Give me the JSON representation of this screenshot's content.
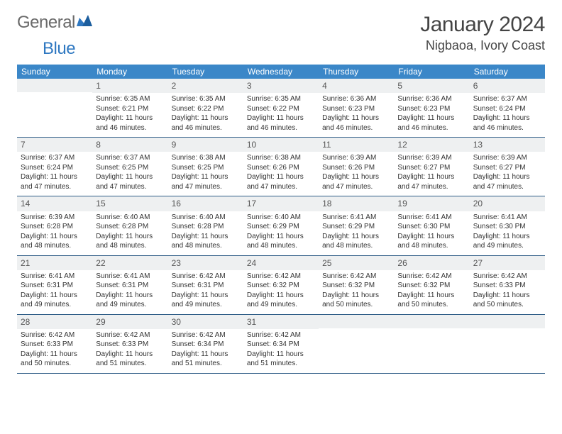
{
  "logo": {
    "word1": "General",
    "word2": "Blue"
  },
  "header": {
    "title": "January 2024",
    "location": "Nigbaoa, Ivory Coast"
  },
  "colors": {
    "dow_bg": "#3b87c8",
    "dow_text": "#ffffff",
    "daynum_bg": "#eef0f1",
    "week_border": "#2f5d87",
    "logo_gray": "#6a6a6a",
    "logo_blue": "#2f78c1"
  },
  "days_of_week": [
    "Sunday",
    "Monday",
    "Tuesday",
    "Wednesday",
    "Thursday",
    "Friday",
    "Saturday"
  ],
  "weeks": [
    [
      {
        "day": "",
        "sunrise": "",
        "sunset": "",
        "daylight": ""
      },
      {
        "day": "1",
        "sunrise": "Sunrise: 6:35 AM",
        "sunset": "Sunset: 6:21 PM",
        "daylight": "Daylight: 11 hours and 46 minutes."
      },
      {
        "day": "2",
        "sunrise": "Sunrise: 6:35 AM",
        "sunset": "Sunset: 6:22 PM",
        "daylight": "Daylight: 11 hours and 46 minutes."
      },
      {
        "day": "3",
        "sunrise": "Sunrise: 6:35 AM",
        "sunset": "Sunset: 6:22 PM",
        "daylight": "Daylight: 11 hours and 46 minutes."
      },
      {
        "day": "4",
        "sunrise": "Sunrise: 6:36 AM",
        "sunset": "Sunset: 6:23 PM",
        "daylight": "Daylight: 11 hours and 46 minutes."
      },
      {
        "day": "5",
        "sunrise": "Sunrise: 6:36 AM",
        "sunset": "Sunset: 6:23 PM",
        "daylight": "Daylight: 11 hours and 46 minutes."
      },
      {
        "day": "6",
        "sunrise": "Sunrise: 6:37 AM",
        "sunset": "Sunset: 6:24 PM",
        "daylight": "Daylight: 11 hours and 46 minutes."
      }
    ],
    [
      {
        "day": "7",
        "sunrise": "Sunrise: 6:37 AM",
        "sunset": "Sunset: 6:24 PM",
        "daylight": "Daylight: 11 hours and 47 minutes."
      },
      {
        "day": "8",
        "sunrise": "Sunrise: 6:37 AM",
        "sunset": "Sunset: 6:25 PM",
        "daylight": "Daylight: 11 hours and 47 minutes."
      },
      {
        "day": "9",
        "sunrise": "Sunrise: 6:38 AM",
        "sunset": "Sunset: 6:25 PM",
        "daylight": "Daylight: 11 hours and 47 minutes."
      },
      {
        "day": "10",
        "sunrise": "Sunrise: 6:38 AM",
        "sunset": "Sunset: 6:26 PM",
        "daylight": "Daylight: 11 hours and 47 minutes."
      },
      {
        "day": "11",
        "sunrise": "Sunrise: 6:39 AM",
        "sunset": "Sunset: 6:26 PM",
        "daylight": "Daylight: 11 hours and 47 minutes."
      },
      {
        "day": "12",
        "sunrise": "Sunrise: 6:39 AM",
        "sunset": "Sunset: 6:27 PM",
        "daylight": "Daylight: 11 hours and 47 minutes."
      },
      {
        "day": "13",
        "sunrise": "Sunrise: 6:39 AM",
        "sunset": "Sunset: 6:27 PM",
        "daylight": "Daylight: 11 hours and 47 minutes."
      }
    ],
    [
      {
        "day": "14",
        "sunrise": "Sunrise: 6:39 AM",
        "sunset": "Sunset: 6:28 PM",
        "daylight": "Daylight: 11 hours and 48 minutes."
      },
      {
        "day": "15",
        "sunrise": "Sunrise: 6:40 AM",
        "sunset": "Sunset: 6:28 PM",
        "daylight": "Daylight: 11 hours and 48 minutes."
      },
      {
        "day": "16",
        "sunrise": "Sunrise: 6:40 AM",
        "sunset": "Sunset: 6:28 PM",
        "daylight": "Daylight: 11 hours and 48 minutes."
      },
      {
        "day": "17",
        "sunrise": "Sunrise: 6:40 AM",
        "sunset": "Sunset: 6:29 PM",
        "daylight": "Daylight: 11 hours and 48 minutes."
      },
      {
        "day": "18",
        "sunrise": "Sunrise: 6:41 AM",
        "sunset": "Sunset: 6:29 PM",
        "daylight": "Daylight: 11 hours and 48 minutes."
      },
      {
        "day": "19",
        "sunrise": "Sunrise: 6:41 AM",
        "sunset": "Sunset: 6:30 PM",
        "daylight": "Daylight: 11 hours and 48 minutes."
      },
      {
        "day": "20",
        "sunrise": "Sunrise: 6:41 AM",
        "sunset": "Sunset: 6:30 PM",
        "daylight": "Daylight: 11 hours and 49 minutes."
      }
    ],
    [
      {
        "day": "21",
        "sunrise": "Sunrise: 6:41 AM",
        "sunset": "Sunset: 6:31 PM",
        "daylight": "Daylight: 11 hours and 49 minutes."
      },
      {
        "day": "22",
        "sunrise": "Sunrise: 6:41 AM",
        "sunset": "Sunset: 6:31 PM",
        "daylight": "Daylight: 11 hours and 49 minutes."
      },
      {
        "day": "23",
        "sunrise": "Sunrise: 6:42 AM",
        "sunset": "Sunset: 6:31 PM",
        "daylight": "Daylight: 11 hours and 49 minutes."
      },
      {
        "day": "24",
        "sunrise": "Sunrise: 6:42 AM",
        "sunset": "Sunset: 6:32 PM",
        "daylight": "Daylight: 11 hours and 49 minutes."
      },
      {
        "day": "25",
        "sunrise": "Sunrise: 6:42 AM",
        "sunset": "Sunset: 6:32 PM",
        "daylight": "Daylight: 11 hours and 50 minutes."
      },
      {
        "day": "26",
        "sunrise": "Sunrise: 6:42 AM",
        "sunset": "Sunset: 6:32 PM",
        "daylight": "Daylight: 11 hours and 50 minutes."
      },
      {
        "day": "27",
        "sunrise": "Sunrise: 6:42 AM",
        "sunset": "Sunset: 6:33 PM",
        "daylight": "Daylight: 11 hours and 50 minutes."
      }
    ],
    [
      {
        "day": "28",
        "sunrise": "Sunrise: 6:42 AM",
        "sunset": "Sunset: 6:33 PM",
        "daylight": "Daylight: 11 hours and 50 minutes."
      },
      {
        "day": "29",
        "sunrise": "Sunrise: 6:42 AM",
        "sunset": "Sunset: 6:33 PM",
        "daylight": "Daylight: 11 hours and 51 minutes."
      },
      {
        "day": "30",
        "sunrise": "Sunrise: 6:42 AM",
        "sunset": "Sunset: 6:34 PM",
        "daylight": "Daylight: 11 hours and 51 minutes."
      },
      {
        "day": "31",
        "sunrise": "Sunrise: 6:42 AM",
        "sunset": "Sunset: 6:34 PM",
        "daylight": "Daylight: 11 hours and 51 minutes."
      },
      {
        "day": "",
        "sunrise": "",
        "sunset": "",
        "daylight": ""
      },
      {
        "day": "",
        "sunrise": "",
        "sunset": "",
        "daylight": ""
      },
      {
        "day": "",
        "sunrise": "",
        "sunset": "",
        "daylight": ""
      }
    ]
  ]
}
